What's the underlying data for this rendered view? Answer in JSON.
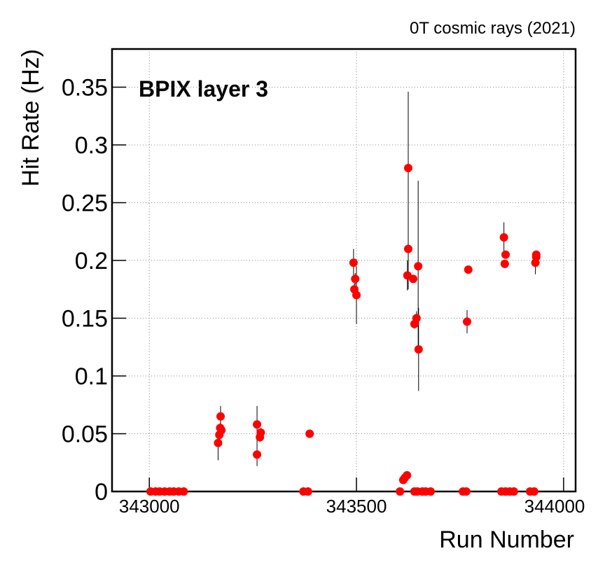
{
  "chart_data": {
    "type": "scatter",
    "annotation": "0T cosmic rays (2021)",
    "label": "BPIX layer 3",
    "x_label": "Run Number",
    "y_label": "Hit Rate (Hz)",
    "xlim": [
      342910,
      344029
    ],
    "ylim": [
      0,
      0.383
    ],
    "xticks": [
      343000,
      343500,
      344000
    ],
    "yticks": [
      0,
      0.05,
      0.1,
      0.15,
      0.2,
      0.25,
      0.3,
      0.35
    ],
    "grid": true,
    "series": [
      {
        "name": "BPIX layer 3",
        "color": "#ff0000",
        "x": [
          343003,
          343015,
          343025,
          343037,
          343049,
          343059,
          343071,
          343083,
          343166,
          343169,
          343171,
          343172,
          343174,
          343260,
          343260,
          343267,
          343269,
          343372,
          343383,
          343387,
          343493,
          343495,
          343497,
          343500,
          343605,
          343613,
          343617,
          343622,
          343625,
          343625,
          343623,
          343637,
          343640,
          343647,
          343640,
          343645,
          343649,
          343650,
          343659,
          343667,
          343679,
          343757,
          343765,
          343767,
          343770,
          343850,
          343860,
          343870,
          343880,
          343856,
          343858,
          343860,
          343919,
          343929,
          343932,
          343934,
          343934
        ],
        "values": [
          0,
          0,
          0,
          0,
          0,
          0,
          0,
          0,
          0.042,
          0.049,
          0.055,
          0.065,
          0.053,
          0.058,
          0.032,
          0.047,
          0.051,
          0,
          0,
          0.05,
          0.198,
          0.175,
          0.184,
          0.17,
          0,
          0.01,
          0.012,
          0.014,
          0.28,
          0.21,
          0.187,
          0.184,
          0,
          0,
          0.145,
          0.15,
          0.195,
          0.123,
          0,
          0,
          0,
          0,
          0,
          0.147,
          0.192,
          0,
          0,
          0,
          0,
          0.22,
          0.197,
          0.205,
          0,
          0,
          0.198,
          0.203,
          0.205
        ],
        "errors": [
          0,
          0,
          0,
          0,
          0,
          0,
          0,
          0,
          0.015,
          0.006,
          0.004,
          0.009,
          0.004,
          0.016,
          0.01,
          0.004,
          0.004,
          0,
          0,
          0.001,
          0.012,
          0.005,
          0.005,
          0.025,
          0,
          0.002,
          0.002,
          0.002,
          0.066,
          0.035,
          0.013,
          0.002,
          0,
          0,
          0.004,
          0.006,
          0.074,
          0.036,
          0,
          0,
          0,
          0,
          0,
          0.01,
          0.002,
          0,
          0,
          0,
          0,
          0.013,
          0.003,
          0.003,
          0,
          0,
          0.01,
          0.003,
          0.002
        ]
      }
    ]
  }
}
